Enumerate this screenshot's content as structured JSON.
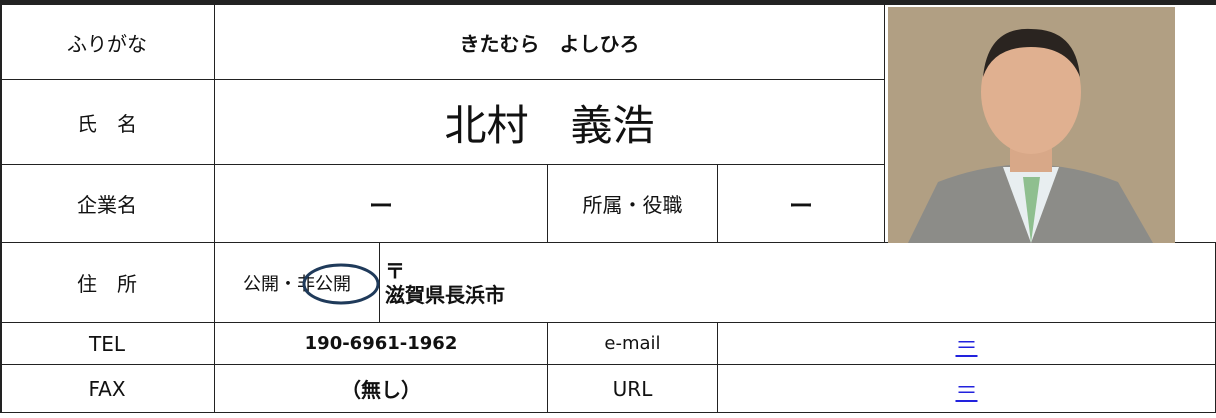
{
  "furigana": {
    "label": "ふりがな",
    "value": "きたむら　よしひろ"
  },
  "name": {
    "label": "氏　名",
    "value": "北村　義浩"
  },
  "company": {
    "label": "企業名",
    "value": "ー"
  },
  "position": {
    "label": "所属・役職",
    "value": "ー"
  },
  "address": {
    "label": "住　所",
    "visibility": "公開・非公開",
    "postal": "〒",
    "value": "滋賀県長浜市"
  },
  "tel": {
    "label": "TEL",
    "value": "190-6961-1962"
  },
  "email": {
    "label": "e-mail",
    "value": "＝"
  },
  "fax": {
    "label": "FAX",
    "value": "（無し）"
  },
  "url": {
    "label": "URL",
    "value": "＝"
  }
}
